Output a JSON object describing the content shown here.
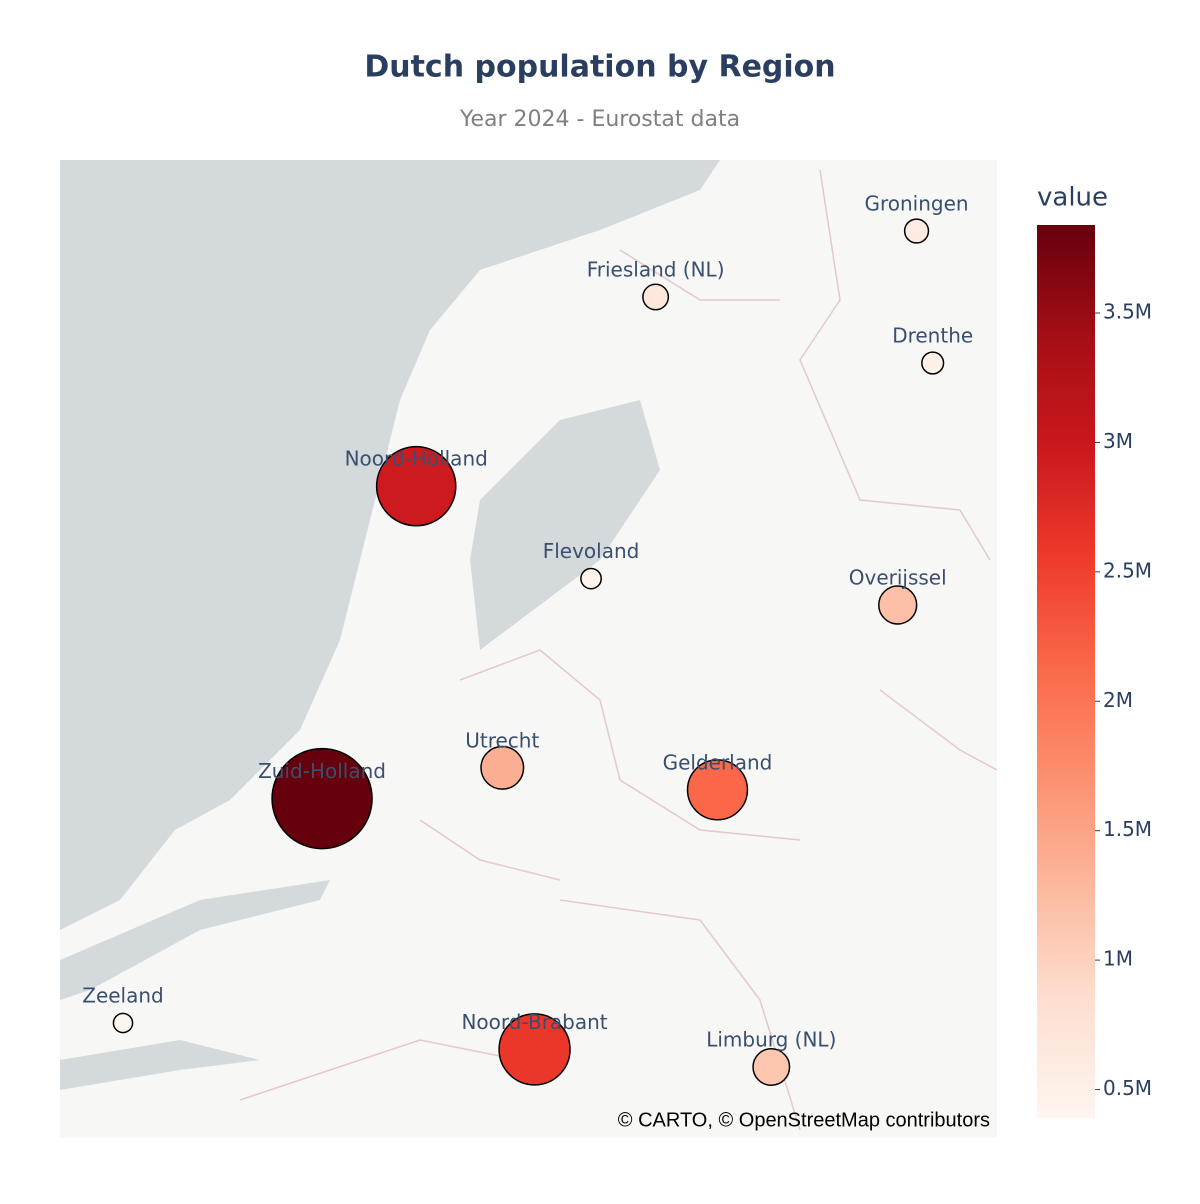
{
  "chart_data": {
    "type": "bubblemap",
    "title": "Dutch population by Region",
    "subtitle": "Year 2024 - Eurostat data",
    "colorbar_title": "value",
    "attribution": "© CARTO, © OpenStreetMap contributors",
    "categories": [
      "Groningen",
      "Friesland (NL)",
      "Drenthe",
      "Noord-Holland",
      "Flevoland",
      "Overijssel",
      "Utrecht",
      "Zuid-Holland",
      "Gelderland",
      "Noord-Brabant",
      "Limburg (NL)",
      "Zeeland"
    ],
    "lat": [
      53.3,
      53.15,
      53.0,
      52.72,
      52.51,
      52.45,
      52.08,
      52.01,
      52.03,
      51.44,
      51.4,
      51.5
    ],
    "lon": [
      6.75,
      5.78,
      6.81,
      4.89,
      5.54,
      6.68,
      5.21,
      4.54,
      6.01,
      5.33,
      6.21,
      3.8
    ],
    "values": [
      590000,
      660000,
      500000,
      2950000,
      440000,
      1190000,
      1390000,
      3840000,
      2130000,
      2600000,
      1130000,
      390000
    ],
    "clim": [
      390000,
      3840000
    ],
    "cticks": [
      {
        "value": 500000,
        "label": "0.5M"
      },
      {
        "value": 1000000,
        "label": "1M"
      },
      {
        "value": 1500000,
        "label": "1.5M"
      },
      {
        "value": 2000000,
        "label": "2M"
      },
      {
        "value": 2500000,
        "label": "2.5M"
      },
      {
        "value": 3000000,
        "label": "3M"
      },
      {
        "value": 3500000,
        "label": "3.5M"
      }
    ],
    "colorscale": [
      "#fff5f0",
      "#fee0d2",
      "#fcbba1",
      "#fc9272",
      "#fb6a4a",
      "#ef3b2c",
      "#cb181d",
      "#a50f15",
      "#67000d"
    ]
  }
}
